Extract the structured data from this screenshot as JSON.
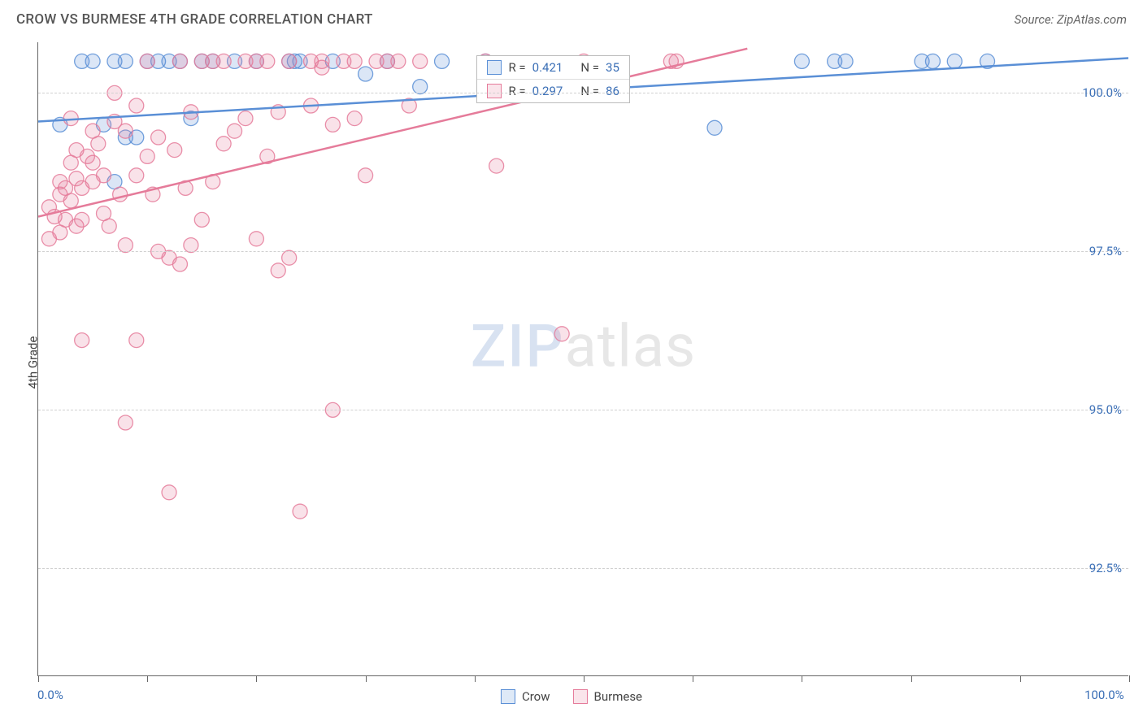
{
  "header": {
    "title": "CROW VS BURMESE 4TH GRADE CORRELATION CHART",
    "source": "Source: ZipAtlas.com"
  },
  "chart": {
    "type": "scatter",
    "y_axis_label": "4th Grade",
    "background_color": "#ffffff",
    "grid_color": "#d0d0d0",
    "axis_color": "#666666",
    "tick_label_color": "#3b6fb6",
    "marker_radius": 9,
    "marker_fill_opacity": 0.22,
    "marker_stroke_opacity": 0.85,
    "line_width": 2.5,
    "xlim": [
      0,
      100
    ],
    "ylim": [
      90.8,
      100.8
    ],
    "x_ticks": [
      0,
      10,
      20,
      30,
      40,
      50,
      60,
      70,
      80,
      90,
      100
    ],
    "x_tick_labels_shown": {
      "0": "0.0%",
      "100": "100.0%"
    },
    "y_ticks": [
      92.5,
      95.0,
      97.5,
      100.0
    ],
    "y_tick_labels": [
      "92.5%",
      "95.0%",
      "97.5%",
      "100.0%"
    ],
    "watermark": {
      "bold": "ZIP",
      "light": "atlas"
    },
    "series": [
      {
        "name": "Crow",
        "color": "#5a8fd6",
        "r_value": "0.421",
        "n_value": "35",
        "trend": {
          "x1": 0,
          "y1": 99.55,
          "x2": 100,
          "y2": 100.55
        },
        "points": [
          [
            2,
            99.5
          ],
          [
            4,
            100.5
          ],
          [
            5,
            100.5
          ],
          [
            6,
            99.5
          ],
          [
            7,
            100.5
          ],
          [
            7,
            98.6
          ],
          [
            8,
            99.3
          ],
          [
            8,
            100.5
          ],
          [
            9,
            99.3
          ],
          [
            10,
            100.5
          ],
          [
            11,
            100.5
          ],
          [
            12,
            100.5
          ],
          [
            13,
            100.5
          ],
          [
            14,
            99.6
          ],
          [
            15,
            100.5
          ],
          [
            16,
            100.5
          ],
          [
            18,
            100.5
          ],
          [
            20,
            100.5
          ],
          [
            23,
            100.5
          ],
          [
            23.5,
            100.5
          ],
          [
            24,
            100.5
          ],
          [
            27,
            100.5
          ],
          [
            30,
            100.3
          ],
          [
            32,
            100.5
          ],
          [
            35,
            100.1
          ],
          [
            37,
            100.5
          ],
          [
            41,
            100.5
          ],
          [
            62,
            99.45
          ],
          [
            70,
            100.5
          ],
          [
            73,
            100.5
          ],
          [
            74,
            100.5
          ],
          [
            81,
            100.5
          ],
          [
            82,
            100.5
          ],
          [
            84,
            100.5
          ],
          [
            87,
            100.5
          ]
        ]
      },
      {
        "name": "Burmese",
        "color": "#e57b9a",
        "r_value": "0.297",
        "n_value": "86",
        "trend": {
          "x1": 0,
          "y1": 98.05,
          "x2": 65,
          "y2": 100.7
        },
        "points": [
          [
            1,
            97.7
          ],
          [
            1,
            98.2
          ],
          [
            1.5,
            98.05
          ],
          [
            2,
            98.6
          ],
          [
            2,
            98.4
          ],
          [
            2,
            97.8
          ],
          [
            2.5,
            98.0
          ],
          [
            2.5,
            98.5
          ],
          [
            3,
            98.9
          ],
          [
            3,
            98.3
          ],
          [
            3,
            99.6
          ],
          [
            3.5,
            97.9
          ],
          [
            3.5,
            98.65
          ],
          [
            3.5,
            99.1
          ],
          [
            4,
            98.5
          ],
          [
            4,
            98.0
          ],
          [
            4,
            96.1
          ],
          [
            4.5,
            99.0
          ],
          [
            5,
            98.9
          ],
          [
            5,
            98.6
          ],
          [
            5,
            99.4
          ],
          [
            5.5,
            99.2
          ],
          [
            6,
            98.1
          ],
          [
            6,
            98.7
          ],
          [
            6.5,
            97.9
          ],
          [
            7,
            99.55
          ],
          [
            7,
            100.0
          ],
          [
            7.5,
            98.4
          ],
          [
            8,
            99.4
          ],
          [
            8,
            97.6
          ],
          [
            8,
            94.8
          ],
          [
            9,
            98.7
          ],
          [
            9,
            99.8
          ],
          [
            9,
            96.1
          ],
          [
            10,
            99.0
          ],
          [
            10,
            100.5
          ],
          [
            10.5,
            98.4
          ],
          [
            11,
            97.5
          ],
          [
            11,
            99.3
          ],
          [
            12,
            97.4
          ],
          [
            12,
            93.7
          ],
          [
            12.5,
            99.1
          ],
          [
            13,
            100.5
          ],
          [
            13,
            97.3
          ],
          [
            13.5,
            98.5
          ],
          [
            14,
            99.7
          ],
          [
            14,
            97.6
          ],
          [
            15,
            100.5
          ],
          [
            15,
            98.0
          ],
          [
            16,
            100.5
          ],
          [
            16,
            98.6
          ],
          [
            17,
            99.2
          ],
          [
            17,
            100.5
          ],
          [
            18,
            99.4
          ],
          [
            19,
            100.5
          ],
          [
            19,
            99.6
          ],
          [
            20,
            97.7
          ],
          [
            20,
            100.5
          ],
          [
            21,
            100.5
          ],
          [
            21,
            99.0
          ],
          [
            22,
            97.2
          ],
          [
            22,
            99.7
          ],
          [
            23,
            100.5
          ],
          [
            23,
            97.4
          ],
          [
            24,
            93.4
          ],
          [
            25,
            100.5
          ],
          [
            25,
            99.8
          ],
          [
            26,
            100.5
          ],
          [
            26,
            100.4
          ],
          [
            27,
            99.5
          ],
          [
            27,
            95.0
          ],
          [
            28,
            100.5
          ],
          [
            29,
            100.5
          ],
          [
            29,
            99.6
          ],
          [
            30,
            98.7
          ],
          [
            31,
            100.5
          ],
          [
            32,
            100.5
          ],
          [
            33,
            100.5
          ],
          [
            34,
            99.8
          ],
          [
            35,
            100.5
          ],
          [
            41,
            100.5
          ],
          [
            42,
            98.85
          ],
          [
            48,
            96.2
          ],
          [
            50,
            100.5
          ],
          [
            58,
            100.5
          ],
          [
            58.5,
            100.5
          ]
        ]
      }
    ],
    "legend_bottom": [
      {
        "label": "Crow",
        "color": "#5a8fd6"
      },
      {
        "label": "Burmese",
        "color": "#e57b9a"
      }
    ],
    "legend_top_position": {
      "left_pct": 40.2,
      "top_pct": 2
    }
  }
}
